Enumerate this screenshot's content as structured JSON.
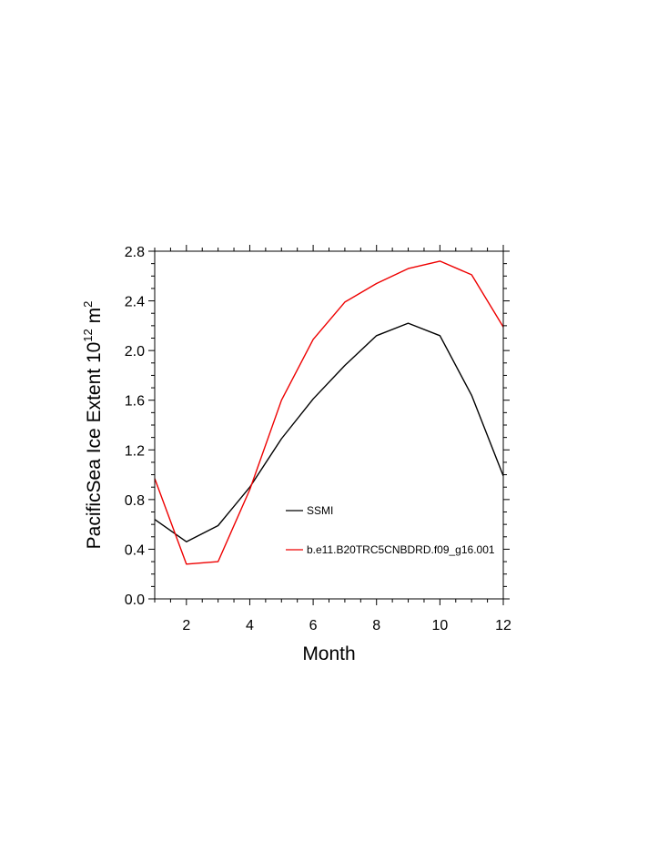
{
  "chart_data": {
    "type": "line",
    "title": "",
    "xlabel": "Month",
    "ylabel": "PacificSea Ice Extent 10",
    "ylabel_exponent": "12",
    "ylabel_unit": " m",
    "ylabel_unit_exponent": "2",
    "xlim": [
      1,
      12
    ],
    "ylim": [
      0.0,
      2.8
    ],
    "xticks": [
      2,
      4,
      6,
      8,
      10,
      12
    ],
    "xtick_labels": [
      "2",
      "4",
      "6",
      "8",
      "10",
      "12"
    ],
    "yticks": [
      0.0,
      0.4,
      0.8,
      1.2,
      1.6,
      2.0,
      2.4,
      2.8
    ],
    "ytick_labels": [
      "0.0",
      "0.4",
      "0.8",
      "1.2",
      "1.6",
      "2.0",
      "2.4",
      "2.8"
    ],
    "x": [
      1,
      2,
      3,
      4,
      5,
      6,
      7,
      8,
      9,
      10,
      11,
      12
    ],
    "series": [
      {
        "name": "SSMI",
        "color": "#000000",
        "values": [
          0.64,
          0.46,
          0.59,
          0.9,
          1.29,
          1.61,
          1.88,
          2.12,
          2.22,
          2.12,
          1.64,
          0.99
        ]
      },
      {
        "name": "b.e11.B20TRC5CNBDRD.f09_g16.001",
        "color": "#ee0000",
        "values": [
          0.97,
          0.28,
          0.3,
          0.88,
          1.6,
          2.09,
          2.39,
          2.54,
          2.66,
          2.72,
          2.61,
          2.19
        ]
      }
    ],
    "grid": false,
    "legend_position": "inside-lower-middle"
  }
}
